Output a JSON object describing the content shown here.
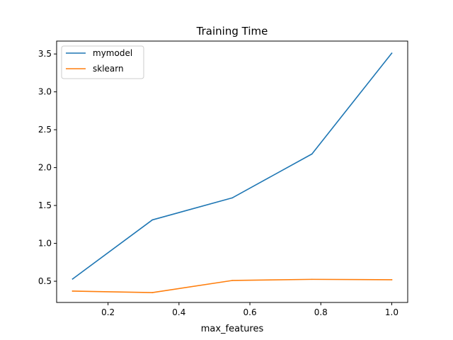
{
  "chart_data": {
    "type": "line",
    "title": "Training Time",
    "xlabel": "max_features",
    "ylabel": "",
    "xlim": [
      0.055,
      1.045
    ],
    "ylim": [
      0.22,
      3.67
    ],
    "xticks": [
      {
        "value": 0.2,
        "label": "0.2"
      },
      {
        "value": 0.4,
        "label": "0.4"
      },
      {
        "value": 0.6,
        "label": "0.6"
      },
      {
        "value": 0.8,
        "label": "0.8"
      },
      {
        "value": 1.0,
        "label": "1.0"
      }
    ],
    "yticks": [
      {
        "value": 0.5,
        "label": "0.5"
      },
      {
        "value": 1.0,
        "label": "1.0"
      },
      {
        "value": 1.5,
        "label": "1.5"
      },
      {
        "value": 2.0,
        "label": "2.0"
      },
      {
        "value": 2.5,
        "label": "2.5"
      },
      {
        "value": 3.0,
        "label": "3.0"
      },
      {
        "value": 3.5,
        "label": "3.5"
      }
    ],
    "x": [
      0.1,
      0.325,
      0.55,
      0.775,
      1.0
    ],
    "series": [
      {
        "name": "mymodel",
        "color": "#1f77b4",
        "values": [
          0.53,
          1.31,
          1.6,
          2.18,
          3.51
        ]
      },
      {
        "name": "sklearn",
        "color": "#ff7f0e",
        "values": [
          0.37,
          0.35,
          0.51,
          0.525,
          0.52
        ]
      }
    ],
    "legend_position": "top-left",
    "grid": false
  }
}
